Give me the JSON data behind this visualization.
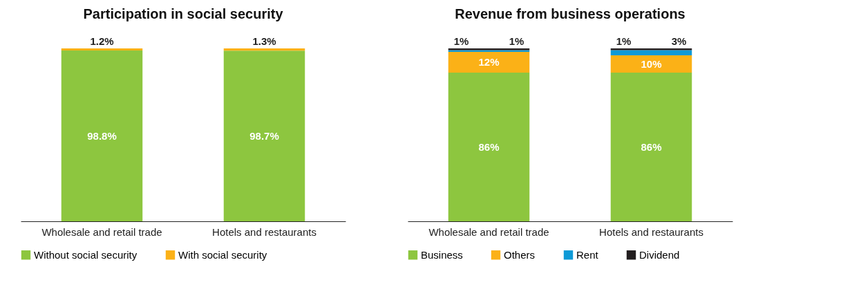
{
  "chart_data": [
    {
      "type": "bar",
      "title": "Participation in social security",
      "categories": [
        "Wholesale and retail trade",
        "Hotels and restaurants"
      ],
      "stacked": true,
      "legend": "bottom",
      "grid": false,
      "ylim": [
        0,
        100
      ],
      "tick_labels": "x",
      "series": [
        {
          "name": "Without social security",
          "color": "#8dc63f",
          "values": [
            98.8,
            98.7
          ],
          "value_labels": [
            "98.8%",
            "98.7%"
          ]
        },
        {
          "name": "With social security",
          "color": "#fbb117",
          "values": [
            1.2,
            1.3
          ],
          "value_labels": [
            "1.2%",
            "1.3%"
          ]
        }
      ]
    },
    {
      "type": "bar",
      "title": "Revenue from business operations",
      "categories": [
        "Wholesale and retail trade",
        "Hotels and restaurants"
      ],
      "stacked": true,
      "legend": "bottom",
      "grid": false,
      "ylim": [
        0,
        100
      ],
      "tick_labels": "x",
      "series": [
        {
          "name": "Business",
          "color": "#8dc63f",
          "values": [
            86,
            86
          ],
          "value_labels": [
            "86%",
            "86%"
          ]
        },
        {
          "name": "Others",
          "color": "#fbb117",
          "values": [
            12,
            10
          ],
          "value_labels": [
            "12%",
            "10%"
          ]
        },
        {
          "name": "Rent",
          "color": "#0e9ad7",
          "values": [
            1,
            3
          ],
          "value_labels": [
            "1%",
            "3%"
          ]
        },
        {
          "name": "Dividend",
          "color": "#231f20",
          "values": [
            1,
            1
          ],
          "value_labels": [
            "1%",
            "1%"
          ]
        }
      ]
    }
  ]
}
